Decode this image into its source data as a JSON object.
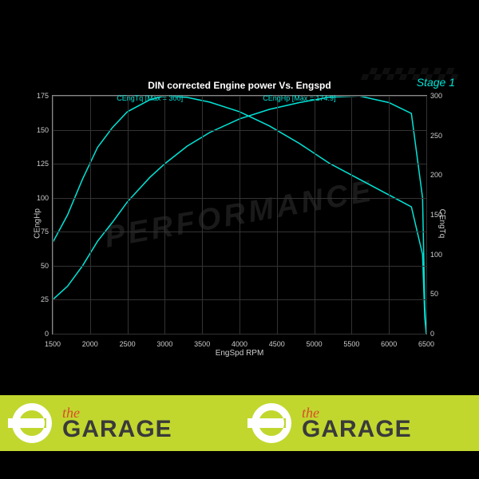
{
  "chart": {
    "type": "line",
    "title": "DIN corrected Engine power Vs. Engspd",
    "stage_label": "Stage 1",
    "watermark_text": "PERFORMANCE",
    "background_color": "#000000",
    "grid_color": "#333333",
    "axis_color": "#888888",
    "text_color": "#cccccc",
    "line_color": "#00e5d8",
    "line_width": 1.5,
    "title_fontsize": 12,
    "tick_fontsize": 9,
    "label_fontsize": 10,
    "x": {
      "label": "EngSpd RPM",
      "min": 1500,
      "max": 6500,
      "ticks": [
        1500,
        2000,
        2500,
        3000,
        3500,
        4000,
        4500,
        5000,
        5500,
        6000,
        6500
      ]
    },
    "y_left": {
      "label": "CEngHp",
      "min": 0,
      "max": 175,
      "ticks": [
        0,
        25,
        50,
        75,
        100,
        125,
        150,
        175
      ]
    },
    "y_right": {
      "label": "CEngTq",
      "min": 0,
      "max": 300,
      "ticks": [
        0,
        50,
        100,
        150,
        200,
        250,
        300
      ]
    },
    "series": [
      {
        "name": "CEngTq",
        "axis": "right",
        "label": "CEngTq [Max = 300]",
        "label_x": 2800,
        "points": [
          [
            1500,
            115
          ],
          [
            1700,
            150
          ],
          [
            1900,
            195
          ],
          [
            2100,
            235
          ],
          [
            2300,
            260
          ],
          [
            2500,
            280
          ],
          [
            2800,
            295
          ],
          [
            3000,
            300
          ],
          [
            3300,
            298
          ],
          [
            3600,
            292
          ],
          [
            4000,
            280
          ],
          [
            4400,
            262
          ],
          [
            4800,
            240
          ],
          [
            5200,
            215
          ],
          [
            5600,
            195
          ],
          [
            6000,
            175
          ],
          [
            6300,
            160
          ],
          [
            6450,
            100
          ],
          [
            6480,
            20
          ],
          [
            6500,
            0
          ]
        ]
      },
      {
        "name": "CEngHp",
        "axis": "left",
        "label": "CEngHp [Max = 174.9]",
        "label_x": 4800,
        "points": [
          [
            1500,
            25
          ],
          [
            1700,
            35
          ],
          [
            1900,
            50
          ],
          [
            2100,
            68
          ],
          [
            2300,
            82
          ],
          [
            2500,
            97
          ],
          [
            2800,
            115
          ],
          [
            3000,
            125
          ],
          [
            3300,
            138
          ],
          [
            3600,
            148
          ],
          [
            4000,
            158
          ],
          [
            4400,
            165
          ],
          [
            4800,
            170
          ],
          [
            5200,
            174
          ],
          [
            5600,
            174.9
          ],
          [
            6000,
            170
          ],
          [
            6300,
            162
          ],
          [
            6450,
            100
          ],
          [
            6480,
            20
          ],
          [
            6500,
            0
          ]
        ]
      }
    ]
  },
  "footer": {
    "background_color": "#c1d72e",
    "logo_the": "the",
    "logo_garage": "GARAGE",
    "the_color": "#d94e28",
    "garage_color": "#3a3a3a",
    "wrench_color": "#ffffff"
  }
}
